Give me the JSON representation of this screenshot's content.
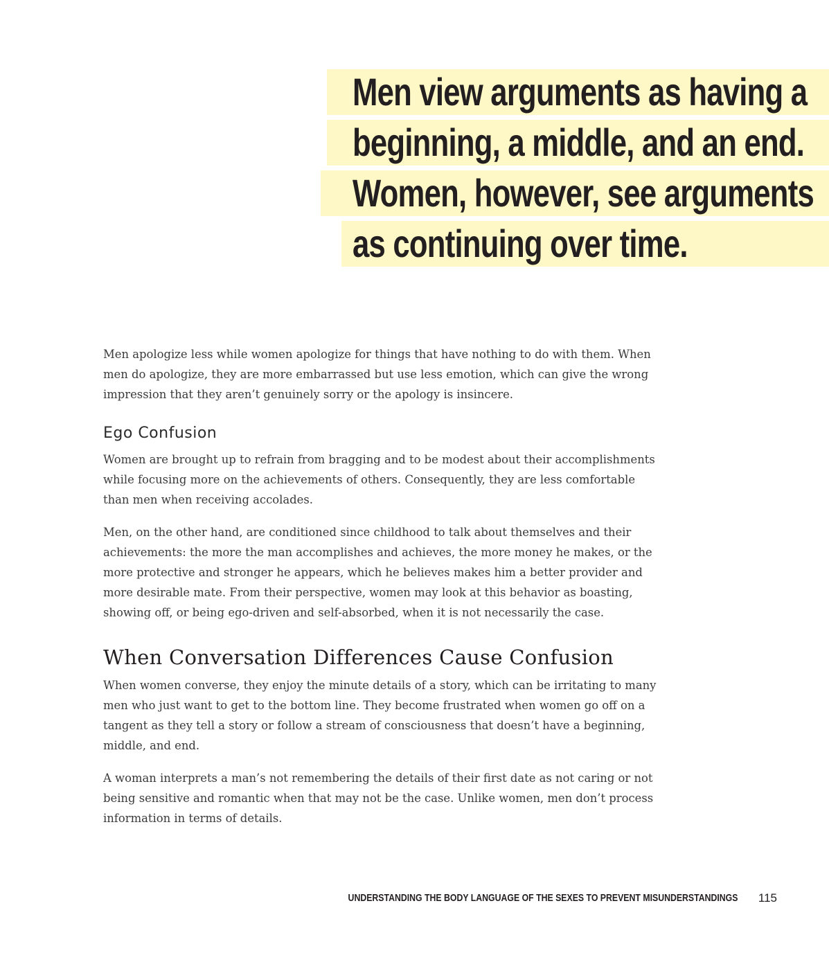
{
  "pull_quote": {
    "lines": [
      "Men view arguments as having a",
      "beginning, a middle, and an end.",
      "Women, however, see arguments",
      "as continuing over time."
    ],
    "highlight_color": "#fdf8c6"
  },
  "intro_paragraph": "Men apologize less while women apologize for things that have nothing to do with them. When men do apologize, they are more embarrassed but use less emotion, which can give the wrong impression that they aren’t genuinely sorry or the apology is insincere.",
  "ego_section": {
    "heading": "Ego Confusion",
    "paragraphs": [
      "Women are brought up to refrain from bragging and to be modest about their accomplishments while focusing more on the achievements of others. Consequently, they are less comfortable than men when receiving accolades.",
      "Men, on the other hand, are conditioned since childhood to talk about themselves and their achievements: the more the man accomplishes and achieves, the more money he makes, or the more protective and stronger he appears, which he believes makes him a better provider and more desirable mate. From their perspective, women may look at this behavior as boasting, showing off, or being ego-driven and self-absorbed, when it is not necessarily the case."
    ]
  },
  "conversation_section": {
    "heading": "When Conversation Differences Cause Confusion",
    "paragraphs": [
      "When women converse, they enjoy the minute details of a story, which can be irritating to many men who just want to get to the bottom line. They become frustrated when women go off on a tangent as they tell a story or follow a stream of consciousness that doesn’t have a beginning, middle, and end.",
      "A woman interprets a man’s not remembering the details of their first date as not caring or not being sensitive and romantic when that may not be the case. Unlike women, men don’t process information in terms of details."
    ]
  },
  "footer": {
    "running_head": "UNDERSTANDING THE BODY LANGUAGE OF THE SEXES TO PREVENT MISUNDERSTANDINGS",
    "page_number": "115"
  }
}
